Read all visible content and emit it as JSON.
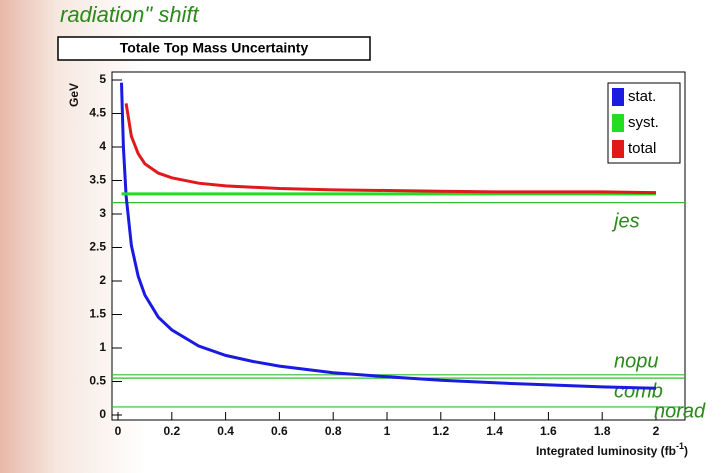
{
  "slide_header": "radiation\" shift",
  "chart_data": {
    "type": "line",
    "title": "Totale Top Mass Uncertainty",
    "x_label": "Integrated luminosity (fb",
    "x_label_exp": "-1",
    "x_label_end": ")",
    "y_label": "GeV",
    "x": [
      0.013,
      0.02,
      0.03,
      0.05,
      0.075,
      0.1,
      0.15,
      0.2,
      0.3,
      0.4,
      0.5,
      0.6,
      0.8,
      1.0,
      1.2,
      1.4,
      1.6,
      1.8,
      2.0
    ],
    "series": [
      {
        "name": "stat.",
        "color": "#1a1ae0",
        "values": [
          4.96,
          4.0,
          3.27,
          2.53,
          2.07,
          1.79,
          1.46,
          1.27,
          1.03,
          0.89,
          0.8,
          0.73,
          0.63,
          0.57,
          0.52,
          0.48,
          0.45,
          0.42,
          0.4
        ]
      },
      {
        "name": "syst.",
        "color": "#22dd22",
        "values": [
          3.3,
          3.3,
          3.3,
          3.3,
          3.3,
          3.3,
          3.3,
          3.3,
          3.3,
          3.3,
          3.3,
          3.3,
          3.3,
          3.3,
          3.3,
          3.3,
          3.3,
          3.3,
          3.3
        ]
      },
      {
        "name": "total",
        "color": "#e01a1a",
        "values": [
          null,
          null,
          4.65,
          4.16,
          3.9,
          3.75,
          3.61,
          3.54,
          3.46,
          3.42,
          3.4,
          3.38,
          3.36,
          3.35,
          3.34,
          3.33,
          3.33,
          3.33,
          3.32
        ]
      }
    ],
    "reference_lines": [
      {
        "label": "jes",
        "value": 3.17
      },
      {
        "label": "nopu",
        "value": 0.6
      },
      {
        "label": "comb",
        "value": 0.55
      },
      {
        "label": "norad",
        "value": 0.12
      }
    ],
    "xlim": [
      0,
      2
    ],
    "ylim": [
      0,
      5
    ],
    "xticks": [
      0,
      0.2,
      0.4,
      0.6,
      0.8,
      1,
      1.2,
      1.4,
      1.6,
      1.8,
      2
    ],
    "yticks": [
      0,
      0.5,
      1,
      1.5,
      2,
      2.5,
      3,
      3.5,
      4,
      4.5,
      5
    ],
    "legend": "top-right"
  }
}
